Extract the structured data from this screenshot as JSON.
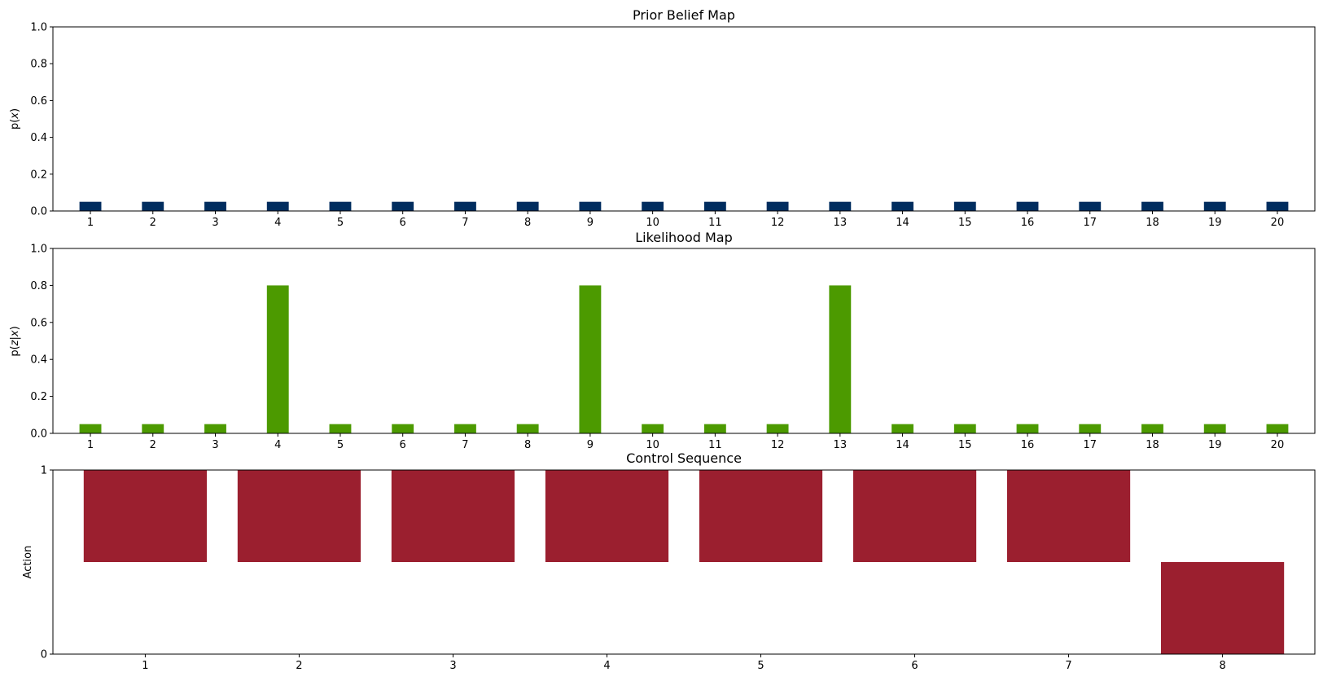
{
  "chart_data": [
    {
      "type": "bar",
      "title": "Prior Belief Map",
      "ylabel": "p(x)",
      "ylabel_parts": [
        "p(",
        "x",
        ")"
      ],
      "categories": [
        "1",
        "2",
        "3",
        "4",
        "5",
        "6",
        "7",
        "8",
        "9",
        "10",
        "11",
        "12",
        "13",
        "14",
        "15",
        "16",
        "17",
        "18",
        "19",
        "20"
      ],
      "values": [
        0.05,
        0.05,
        0.05,
        0.05,
        0.05,
        0.05,
        0.05,
        0.05,
        0.05,
        0.05,
        0.05,
        0.05,
        0.05,
        0.05,
        0.05,
        0.05,
        0.05,
        0.05,
        0.05,
        0.05
      ],
      "yticks": [
        "0.0",
        "0.2",
        "0.4",
        "0.6",
        "0.8",
        "1.0"
      ],
      "ylim": [
        0,
        1
      ],
      "color": "#002d5f",
      "grid": false
    },
    {
      "type": "bar",
      "title": "Likelihood Map",
      "ylabel": "p(z|x)",
      "ylabel_parts": [
        "p(",
        "z",
        "|",
        "x",
        ")"
      ],
      "categories": [
        "1",
        "2",
        "3",
        "4",
        "5",
        "6",
        "7",
        "8",
        "9",
        "10",
        "11",
        "12",
        "13",
        "14",
        "15",
        "16",
        "17",
        "18",
        "19",
        "20"
      ],
      "values": [
        0.05,
        0.05,
        0.05,
        0.8,
        0.05,
        0.05,
        0.05,
        0.05,
        0.8,
        0.05,
        0.05,
        0.05,
        0.8,
        0.05,
        0.05,
        0.05,
        0.05,
        0.05,
        0.05,
        0.05
      ],
      "yticks": [
        "0.0",
        "0.2",
        "0.4",
        "0.6",
        "0.8",
        "1.0"
      ],
      "ylim": [
        0,
        1
      ],
      "color": "#4c9a00",
      "grid": false
    },
    {
      "type": "bar",
      "title": "Control Sequence",
      "ylabel": "Action",
      "categories": [
        "1",
        "2",
        "3",
        "4",
        "5",
        "6",
        "7",
        "8"
      ],
      "ranges": [
        [
          0.5,
          1
        ],
        [
          0.5,
          1
        ],
        [
          0.5,
          1
        ],
        [
          0.5,
          1
        ],
        [
          0.5,
          1
        ],
        [
          0.5,
          1
        ],
        [
          0.5,
          1
        ],
        [
          0,
          0.5
        ]
      ],
      "yticks": [
        "0",
        "1"
      ],
      "ylim": [
        0,
        1
      ],
      "color": "#9b1f2f",
      "grid": false
    }
  ]
}
